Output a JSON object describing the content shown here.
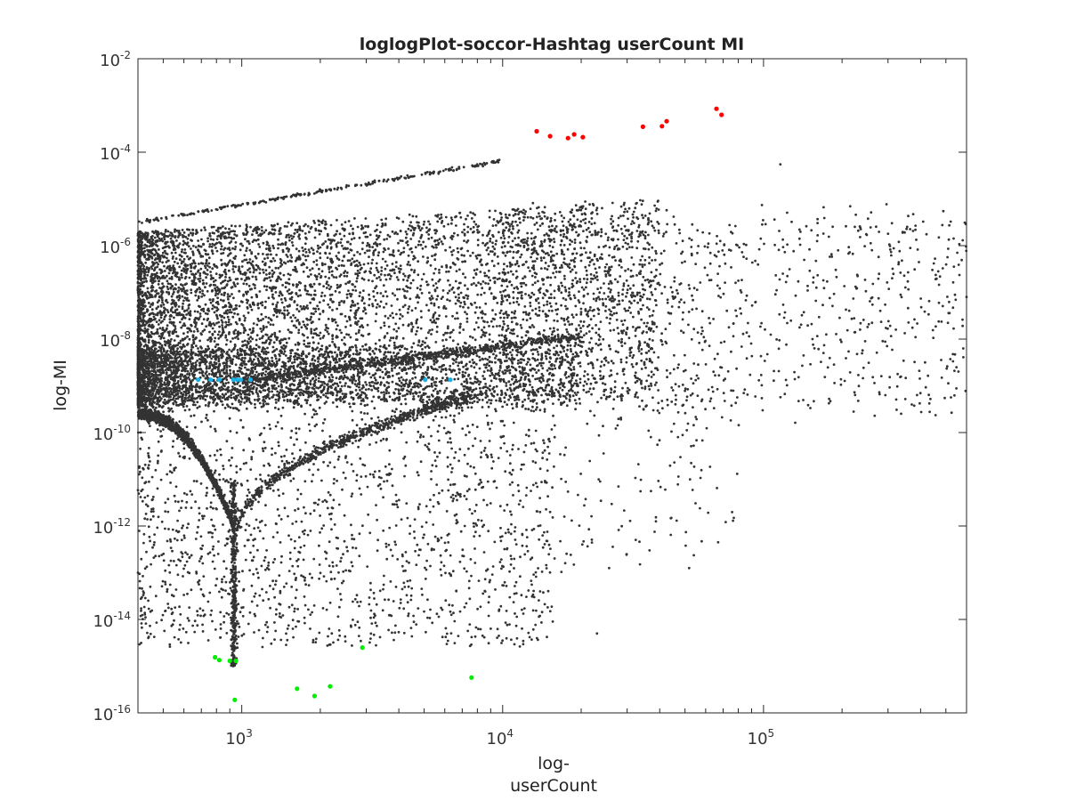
{
  "chart_data": {
    "type": "scatter",
    "title": "loglogPlot-soccor-Hashtag userCount MI",
    "xlabel": [
      "log-",
      "userCount"
    ],
    "ylabel": "log-MI",
    "xscale": "log",
    "yscale": "log",
    "xlim": [
      400,
      600000
    ],
    "ylim": [
      1e-16,
      0.01
    ],
    "xticks": [
      {
        "value": 1000,
        "base": "10",
        "exp": "3"
      },
      {
        "value": 10000,
        "base": "10",
        "exp": "4"
      },
      {
        "value": 100000,
        "base": "10",
        "exp": "5"
      }
    ],
    "yticks": [
      {
        "value": 1e-16,
        "base": "10",
        "exp": "-16"
      },
      {
        "value": 1e-14,
        "base": "10",
        "exp": "-14"
      },
      {
        "value": 1e-12,
        "base": "10",
        "exp": "-12"
      },
      {
        "value": 1e-10,
        "base": "10",
        "exp": "-10"
      },
      {
        "value": 1e-08,
        "base": "10",
        "exp": "-8"
      },
      {
        "value": 1e-06,
        "base": "10",
        "exp": "-6"
      },
      {
        "value": 0.0001,
        "base": "10",
        "exp": "-4"
      },
      {
        "value": 0.01,
        "base": "10",
        "exp": "-2"
      }
    ],
    "grid": false,
    "legend": "none",
    "colors": {
      "bulk": "#333333",
      "top": "#ff0000",
      "middle": "#1ab0e8",
      "bottom": "#00ee00"
    },
    "series": [
      {
        "color_key": "top",
        "x": [
          13500,
          15200,
          17800,
          18800,
          20300,
          34500,
          40800,
          42500,
          66000,
          69000
        ],
        "y": [
          0.00028,
          0.00022,
          0.0002,
          0.00024,
          0.00021,
          0.00035,
          0.00036,
          0.00046,
          0.00085,
          0.00063
        ]
      },
      {
        "color_key": "middle",
        "x": [
          680,
          760,
          820,
          930,
          960,
          990,
          1080,
          5050,
          6300
        ],
        "y": [
          1.35e-09,
          1.35e-09,
          1.35e-09,
          1.35e-09,
          1.35e-09,
          1.35e-09,
          1.35e-09,
          1.35e-09,
          1.35e-09
        ]
      },
      {
        "color_key": "bottom",
        "x": [
          790,
          820,
          900,
          950,
          940,
          1630,
          1900,
          2180,
          2900,
          7600
        ],
        "y": [
          1.55e-15,
          1.35e-15,
          1.3e-15,
          1.3e-15,
          1.9e-16,
          3.3e-16,
          2.3e-16,
          3.7e-16,
          2.5e-15,
          5.7e-16
        ]
      },
      {
        "color_key": "bulk",
        "sparse_outliers": {
          "x": [
            116000,
            300000,
            330000,
            470000,
            580000,
            600000,
            98000,
            8300,
            23000,
            13700,
            37000,
            47000
          ],
          "y": [
            5.5e-05,
            1.8e-06,
            1.2e-06,
            1.5e-06,
            1.3e-06,
            8e-08,
            1.7e-09,
            1.3e-12,
            5e-15,
            1e-12,
            8e-11,
            8e-11
          ]
        }
      }
    ]
  }
}
